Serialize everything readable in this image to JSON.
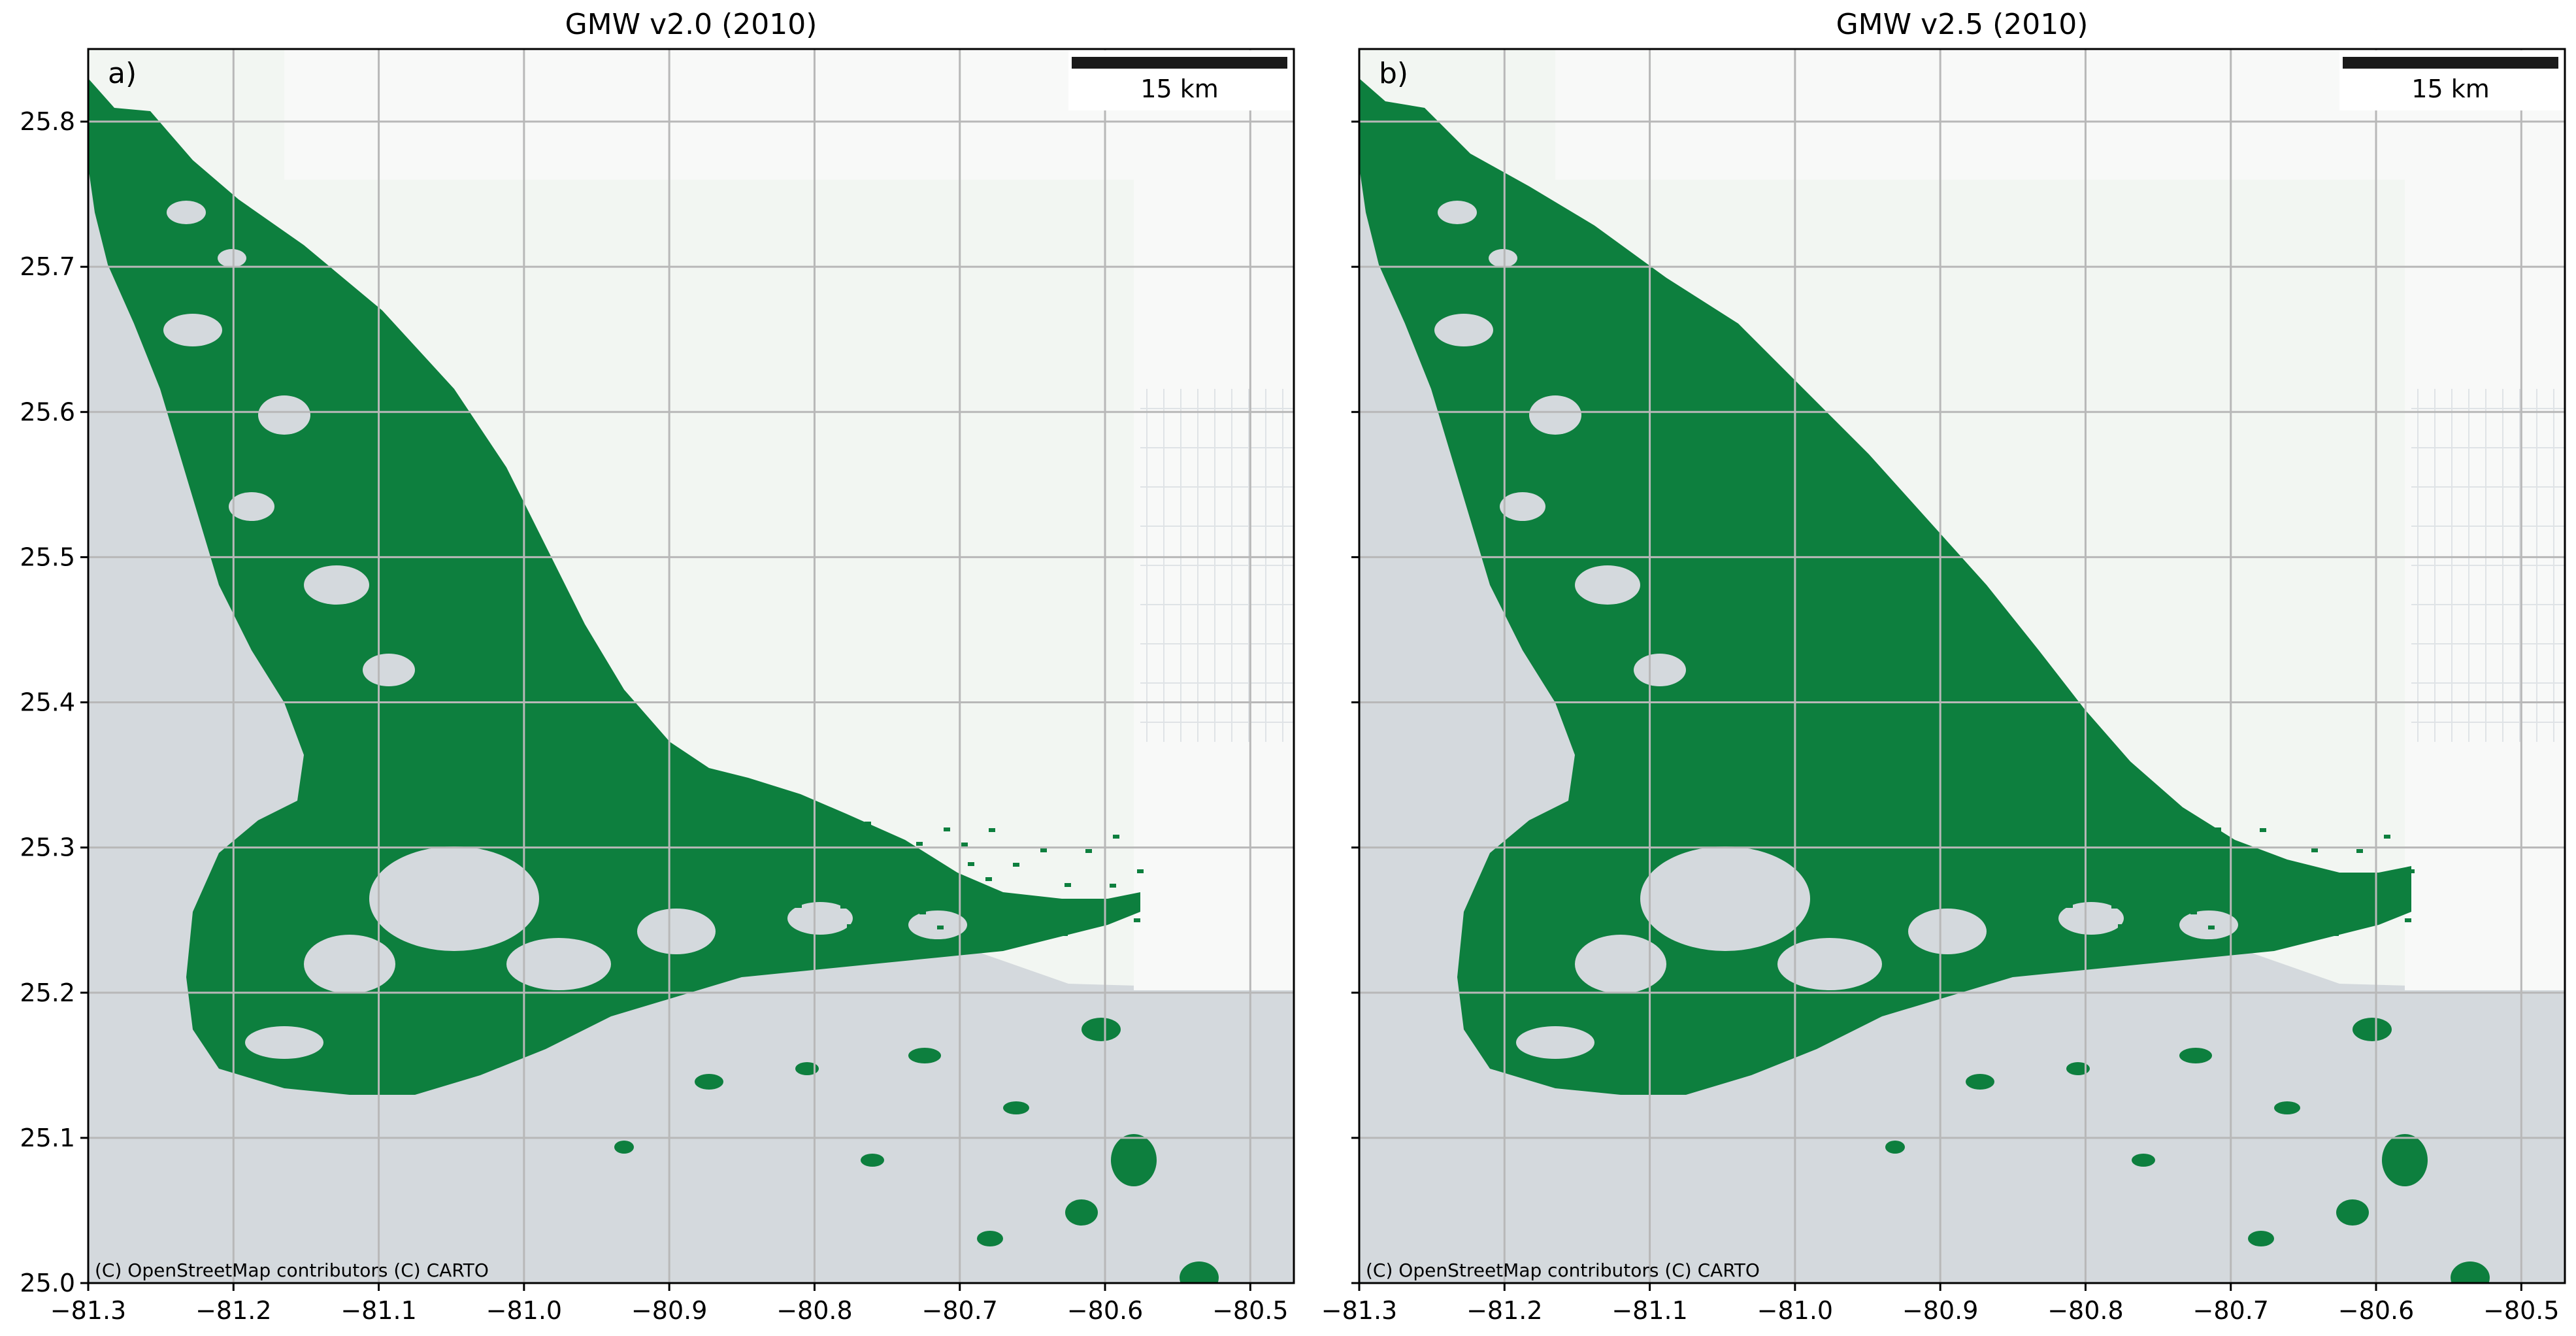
{
  "panels": [
    {
      "title": "GMW v2.0 (2010)",
      "label": "a)",
      "scale_bar": "15 km",
      "attribution": "(C) OpenStreetMap contributors (C) CARTO",
      "variant": "v20"
    },
    {
      "title": "GMW v2.5 (2010)",
      "label": "b)",
      "scale_bar": "15 km",
      "attribution": "(C) OpenStreetMap contributors (C) CARTO",
      "variant": "v25"
    }
  ],
  "map_extent": {
    "lon": [
      -81.3,
      -80.47
    ],
    "lat": [
      25.0,
      25.85
    ]
  },
  "x_ticks": [
    "−81.3",
    "−81.2",
    "−81.1",
    "−81.0",
    "−80.9",
    "−80.8",
    "−80.7",
    "−80.6",
    "−80.5"
  ],
  "x_tick_values": [
    -81.3,
    -81.2,
    -81.1,
    -81.0,
    -80.9,
    -80.8,
    -80.7,
    -80.6,
    -80.5
  ],
  "y_ticks": [
    "25.0",
    "25.1",
    "25.2",
    "25.3",
    "25.4",
    "25.5",
    "25.6",
    "25.7",
    "25.8"
  ],
  "y_tick_values": [
    25.0,
    25.1,
    25.2,
    25.3,
    25.4,
    25.5,
    25.6,
    25.7,
    25.8
  ],
  "colors": {
    "water": "#d4d9dd",
    "land": "#f2f6f2",
    "land_light": "#f8f9f8",
    "mangrove": "#0d7f3e",
    "grid": "#b8b8b8"
  }
}
